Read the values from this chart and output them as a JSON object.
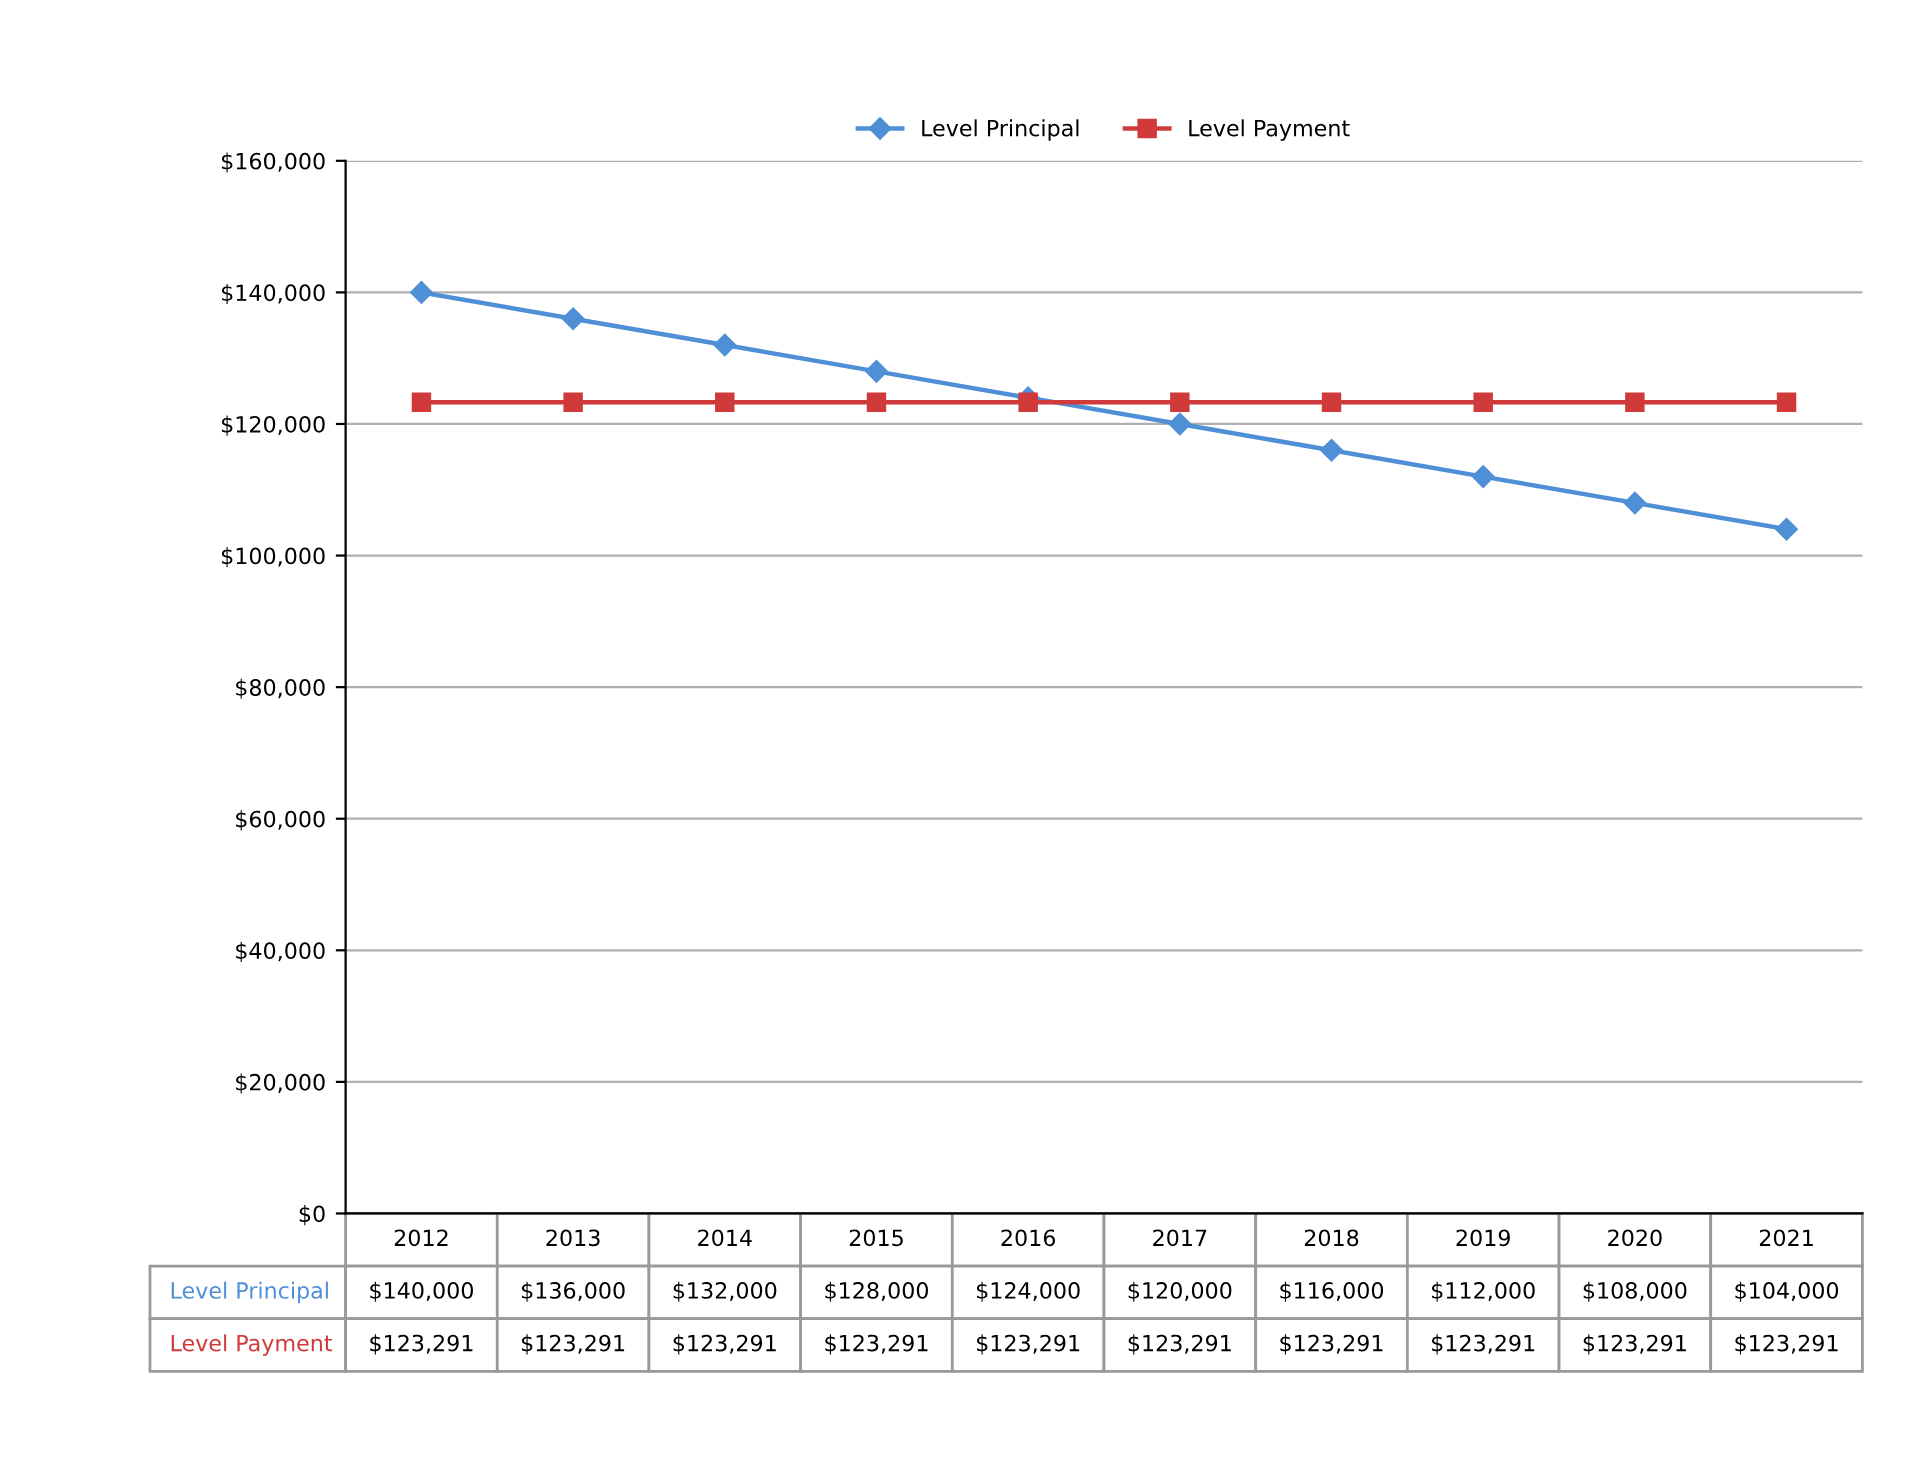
{
  "chart_data": {
    "type": "line",
    "categories": [
      "2012",
      "2013",
      "2014",
      "2015",
      "2016",
      "2017",
      "2018",
      "2019",
      "2020",
      "2021"
    ],
    "series": [
      {
        "name": "Level Principal",
        "color": "#4f8fd6",
        "marker": "diamond",
        "values": [
          140000,
          136000,
          132000,
          128000,
          124000,
          120000,
          116000,
          112000,
          108000,
          104000
        ],
        "value_labels": [
          "$140,000",
          "$136,000",
          "$132,000",
          "$128,000",
          "$124,000",
          "$120,000",
          "$116,000",
          "$112,000",
          "$108,000",
          "$104,000"
        ]
      },
      {
        "name": "Level Payment",
        "color": "#d03a3a",
        "marker": "square",
        "values": [
          123291,
          123291,
          123291,
          123291,
          123291,
          123291,
          123291,
          123291,
          123291,
          123291
        ],
        "value_labels": [
          "$123,291",
          "$123,291",
          "$123,291",
          "$123,291",
          "$123,291",
          "$123,291",
          "$123,291",
          "$123,291",
          "$123,291",
          "$123,291"
        ]
      }
    ],
    "ylim": [
      0,
      160000
    ],
    "yticks": [
      {
        "value": 0,
        "label": "$0"
      },
      {
        "value": 20000,
        "label": "$20,000"
      },
      {
        "value": 40000,
        "label": "$40,000"
      },
      {
        "value": 60000,
        "label": "$60,000"
      },
      {
        "value": 80000,
        "label": "$80,000"
      },
      {
        "value": 100000,
        "label": "$100,000"
      },
      {
        "value": 120000,
        "label": "$120,000"
      },
      {
        "value": 140000,
        "label": "$140,000"
      },
      {
        "value": 160000,
        "label": "$160,000"
      }
    ],
    "grid": "y",
    "legend": "top"
  }
}
